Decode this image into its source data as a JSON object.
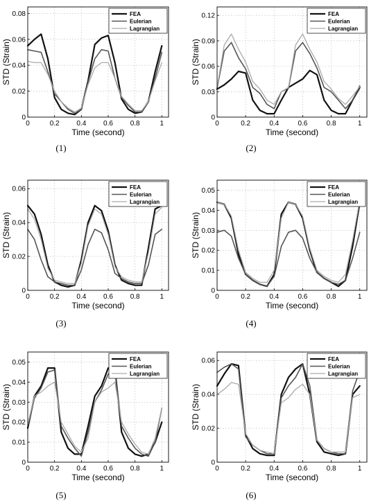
{
  "captions": [
    "(1)",
    "(2)",
    "(3)",
    "(4)",
    "(5)",
    "(6)"
  ],
  "chart_data": [
    {
      "type": "line",
      "xlabel": "Time (second)",
      "ylabel": "STD (Strain)",
      "xlim": [
        0,
        1.05
      ],
      "ylim": [
        0,
        0.085
      ],
      "xticks": [
        "0",
        "0.2",
        "0.4",
        "0.6",
        "0.8",
        "1"
      ],
      "yticks": [
        "0",
        "0.02",
        "0.04",
        "0.06",
        "0.08"
      ],
      "grid": true,
      "legend": "top-right",
      "series": [
        {
          "name": "FEA",
          "color": "#111111",
          "x": [
            0,
            0.05,
            0.1,
            0.15,
            0.2,
            0.25,
            0.3,
            0.35,
            0.4,
            0.45,
            0.5,
            0.55,
            0.6,
            0.65,
            0.7,
            0.75,
            0.8,
            0.85,
            0.9,
            0.95,
            1.0
          ],
          "values": [
            0.055,
            0.06,
            0.064,
            0.045,
            0.015,
            0.006,
            0.003,
            0.002,
            0.006,
            0.028,
            0.056,
            0.061,
            0.063,
            0.042,
            0.014,
            0.006,
            0.003,
            0.004,
            0.012,
            0.035,
            0.055
          ]
        },
        {
          "name": "Eulerian",
          "color": "#555555",
          "x": [
            0,
            0.05,
            0.1,
            0.15,
            0.2,
            0.25,
            0.3,
            0.35,
            0.4,
            0.45,
            0.5,
            0.55,
            0.6,
            0.65,
            0.7,
            0.75,
            0.8,
            0.85,
            0.9,
            0.95,
            1.0
          ],
          "values": [
            0.052,
            0.051,
            0.05,
            0.035,
            0.018,
            0.012,
            0.006,
            0.003,
            0.006,
            0.027,
            0.045,
            0.052,
            0.051,
            0.03,
            0.015,
            0.009,
            0.004,
            0.004,
            0.012,
            0.03,
            0.05
          ]
        },
        {
          "name": "Lagrangian",
          "color": "#aaaaaa",
          "x": [
            0,
            0.05,
            0.1,
            0.15,
            0.2,
            0.25,
            0.3,
            0.35,
            0.4,
            0.45,
            0.5,
            0.55,
            0.6,
            0.65,
            0.7,
            0.75,
            0.8,
            0.85,
            0.9,
            0.95,
            1.0
          ],
          "values": [
            0.043,
            0.042,
            0.042,
            0.033,
            0.02,
            0.012,
            0.007,
            0.004,
            0.007,
            0.025,
            0.038,
            0.042,
            0.042,
            0.03,
            0.016,
            0.01,
            0.005,
            0.005,
            0.012,
            0.028,
            0.042
          ]
        }
      ]
    },
    {
      "type": "line",
      "xlabel": "Time (second)",
      "ylabel": "STD (Strain)",
      "xlim": [
        0,
        1.05
      ],
      "ylim": [
        0,
        0.13
      ],
      "xticks": [
        "0",
        "0.2",
        "0.4",
        "0.6",
        "0.8",
        "1"
      ],
      "yticks": [
        "0",
        "0.03",
        "0.06",
        "0.09",
        "0.12"
      ],
      "grid": true,
      "legend": "top-right",
      "series": [
        {
          "name": "FEA",
          "color": "#111111",
          "x": [
            0,
            0.05,
            0.1,
            0.15,
            0.2,
            0.25,
            0.3,
            0.35,
            0.4,
            0.45,
            0.5,
            0.55,
            0.6,
            0.65,
            0.7,
            0.75,
            0.8,
            0.85,
            0.9,
            0.95,
            1.0
          ],
          "values": [
            0.033,
            0.038,
            0.045,
            0.054,
            0.052,
            0.02,
            0.008,
            0.004,
            0.004,
            0.02,
            0.035,
            0.04,
            0.045,
            0.055,
            0.05,
            0.02,
            0.008,
            0.004,
            0.004,
            0.02,
            0.035
          ]
        },
        {
          "name": "Eulerian",
          "color": "#555555",
          "x": [
            0,
            0.05,
            0.1,
            0.15,
            0.2,
            0.25,
            0.3,
            0.35,
            0.4,
            0.45,
            0.5,
            0.55,
            0.6,
            0.65,
            0.7,
            0.75,
            0.8,
            0.85,
            0.9,
            0.95,
            1.0
          ],
          "values": [
            0.034,
            0.078,
            0.088,
            0.07,
            0.057,
            0.035,
            0.028,
            0.015,
            0.01,
            0.03,
            0.034,
            0.078,
            0.088,
            0.075,
            0.058,
            0.035,
            0.03,
            0.02,
            0.01,
            0.02,
            0.037
          ]
        },
        {
          "name": "Lagrangian",
          "color": "#aaaaaa",
          "x": [
            0,
            0.05,
            0.1,
            0.15,
            0.2,
            0.25,
            0.3,
            0.35,
            0.4,
            0.45,
            0.5,
            0.55,
            0.6,
            0.65,
            0.7,
            0.75,
            0.8,
            0.85,
            0.9,
            0.95,
            1.0
          ],
          "values": [
            0.035,
            0.085,
            0.098,
            0.08,
            0.065,
            0.042,
            0.033,
            0.02,
            0.015,
            0.03,
            0.035,
            0.085,
            0.098,
            0.08,
            0.065,
            0.042,
            0.033,
            0.022,
            0.015,
            0.025,
            0.036
          ]
        }
      ]
    },
    {
      "type": "line",
      "xlabel": "Time (second)",
      "ylabel": "STD (Strain)",
      "xlim": [
        0,
        1.05
      ],
      "ylim": [
        0,
        0.065
      ],
      "xticks": [
        "0",
        "0.2",
        "0.4",
        "0.6",
        "0.8",
        "1"
      ],
      "yticks": [
        "0",
        "0.02",
        "0.04",
        "0.06"
      ],
      "grid": true,
      "legend": "top-right",
      "series": [
        {
          "name": "FEA",
          "color": "#111111",
          "x": [
            0,
            0.05,
            0.1,
            0.15,
            0.2,
            0.25,
            0.3,
            0.35,
            0.4,
            0.45,
            0.5,
            0.55,
            0.6,
            0.65,
            0.7,
            0.75,
            0.8,
            0.85,
            0.9,
            0.95,
            1.0
          ],
          "values": [
            0.05,
            0.045,
            0.033,
            0.015,
            0.005,
            0.003,
            0.002,
            0.003,
            0.018,
            0.04,
            0.05,
            0.047,
            0.035,
            0.015,
            0.006,
            0.004,
            0.003,
            0.003,
            0.025,
            0.048,
            0.05
          ]
        },
        {
          "name": "Eulerian",
          "color": "#555555",
          "x": [
            0,
            0.05,
            0.1,
            0.15,
            0.2,
            0.25,
            0.3,
            0.35,
            0.4,
            0.45,
            0.5,
            0.55,
            0.6,
            0.65,
            0.7,
            0.75,
            0.8,
            0.85,
            0.9,
            0.95,
            1.0
          ],
          "values": [
            0.036,
            0.03,
            0.018,
            0.008,
            0.005,
            0.004,
            0.003,
            0.003,
            0.012,
            0.027,
            0.036,
            0.034,
            0.024,
            0.01,
            0.007,
            0.005,
            0.004,
            0.004,
            0.015,
            0.033,
            0.036
          ]
        },
        {
          "name": "Lagrangian",
          "color": "#aaaaaa",
          "x": [
            0,
            0.05,
            0.1,
            0.15,
            0.2,
            0.25,
            0.3,
            0.35,
            0.4,
            0.45,
            0.5,
            0.55,
            0.6,
            0.65,
            0.7,
            0.75,
            0.8,
            0.85,
            0.9,
            0.95,
            1.0
          ],
          "values": [
            0.048,
            0.042,
            0.03,
            0.013,
            0.006,
            0.005,
            0.004,
            0.004,
            0.016,
            0.038,
            0.048,
            0.045,
            0.033,
            0.014,
            0.008,
            0.006,
            0.005,
            0.005,
            0.022,
            0.045,
            0.049
          ]
        }
      ]
    },
    {
      "type": "line",
      "xlabel": "Time (second)",
      "ylabel": "STD (Strain)",
      "xlim": [
        0,
        1.05
      ],
      "ylim": [
        0,
        0.055
      ],
      "xticks": [
        "0",
        "0.2",
        "0.4",
        "0.6",
        "0.8",
        "1"
      ],
      "yticks": [
        "0",
        "0.01",
        "0.02",
        "0.03",
        "0.04",
        "0.05"
      ],
      "grid": true,
      "legend": "top-right",
      "series": [
        {
          "name": "FEA",
          "color": "#111111",
          "x": [
            0,
            0.05,
            0.1,
            0.15,
            0.2,
            0.25,
            0.3,
            0.35,
            0.4,
            0.45,
            0.5,
            0.55,
            0.6,
            0.65,
            0.7,
            0.75,
            0.8,
            0.85,
            0.9,
            0.95,
            1.0
          ],
          "values": [
            0.044,
            0.043,
            0.036,
            0.018,
            0.008,
            0.005,
            0.003,
            0.002,
            0.008,
            0.038,
            0.044,
            0.043,
            0.036,
            0.02,
            0.009,
            0.006,
            0.004,
            0.002,
            0.005,
            0.022,
            0.044
          ]
        },
        {
          "name": "Eulerian",
          "color": "#555555",
          "x": [
            0,
            0.05,
            0.1,
            0.15,
            0.2,
            0.25,
            0.3,
            0.35,
            0.4,
            0.45,
            0.5,
            0.55,
            0.6,
            0.65,
            0.7,
            0.75,
            0.8,
            0.85,
            0.9,
            0.95,
            1.0
          ],
          "values": [
            0.029,
            0.03,
            0.027,
            0.016,
            0.008,
            0.005,
            0.003,
            0.002,
            0.007,
            0.022,
            0.029,
            0.03,
            0.026,
            0.016,
            0.009,
            0.006,
            0.004,
            0.003,
            0.005,
            0.016,
            0.029
          ]
        },
        {
          "name": "Lagrangian",
          "color": "#aaaaaa",
          "x": [
            0,
            0.05,
            0.1,
            0.15,
            0.2,
            0.25,
            0.3,
            0.35,
            0.4,
            0.45,
            0.5,
            0.55,
            0.6,
            0.65,
            0.7,
            0.75,
            0.8,
            0.85,
            0.9,
            0.95,
            1.0
          ],
          "values": [
            0.044,
            0.043,
            0.037,
            0.02,
            0.009,
            0.006,
            0.004,
            0.004,
            0.01,
            0.036,
            0.044,
            0.043,
            0.037,
            0.021,
            0.01,
            0.007,
            0.005,
            0.004,
            0.008,
            0.025,
            0.045
          ]
        }
      ]
    },
    {
      "type": "line",
      "xlabel": "Time (second)",
      "ylabel": "STD (Strain)",
      "xlim": [
        0,
        1.05
      ],
      "ylim": [
        0,
        0.055
      ],
      "xticks": [
        "0",
        "0.2",
        "0.4",
        "0.6",
        "0.8",
        "1"
      ],
      "yticks": [
        "0",
        "0.01",
        "0.02",
        "0.03",
        "0.04",
        "0.05"
      ],
      "grid": true,
      "legend": "top-right",
      "series": [
        {
          "name": "FEA",
          "color": "#111111",
          "x": [
            0,
            0.05,
            0.1,
            0.15,
            0.2,
            0.25,
            0.3,
            0.35,
            0.4,
            0.45,
            0.5,
            0.55,
            0.6,
            0.65,
            0.7,
            0.75,
            0.8,
            0.85,
            0.9,
            0.95,
            1.0
          ],
          "values": [
            0.017,
            0.033,
            0.038,
            0.047,
            0.047,
            0.015,
            0.007,
            0.004,
            0.004,
            0.018,
            0.033,
            0.038,
            0.047,
            0.047,
            0.015,
            0.007,
            0.004,
            0.003,
            0.004,
            0.01,
            0.02
          ]
        },
        {
          "name": "Eulerian",
          "color": "#555555",
          "x": [
            0,
            0.05,
            0.1,
            0.15,
            0.2,
            0.25,
            0.3,
            0.35,
            0.4,
            0.45,
            0.5,
            0.55,
            0.6,
            0.65,
            0.7,
            0.75,
            0.8,
            0.85,
            0.9,
            0.95,
            1.0
          ],
          "values": [
            0.018,
            0.032,
            0.037,
            0.045,
            0.046,
            0.018,
            0.012,
            0.007,
            0.003,
            0.015,
            0.03,
            0.036,
            0.044,
            0.046,
            0.018,
            0.012,
            0.007,
            0.004,
            0.003,
            0.01,
            0.027
          ]
        },
        {
          "name": "Lagrangian",
          "color": "#aaaaaa",
          "x": [
            0,
            0.05,
            0.1,
            0.15,
            0.2,
            0.25,
            0.3,
            0.35,
            0.4,
            0.45,
            0.5,
            0.55,
            0.6,
            0.65,
            0.7,
            0.75,
            0.8,
            0.85,
            0.9,
            0.95,
            1.0
          ],
          "values": [
            0.019,
            0.033,
            0.035,
            0.038,
            0.04,
            0.02,
            0.014,
            0.008,
            0.005,
            0.012,
            0.03,
            0.035,
            0.037,
            0.04,
            0.02,
            0.014,
            0.009,
            0.005,
            0.004,
            0.012,
            0.027
          ]
        }
      ]
    },
    {
      "type": "line",
      "xlabel": "Time (second)",
      "ylabel": "STD (Strain)",
      "xlim": [
        0,
        1.05
      ],
      "ylim": [
        0,
        0.065
      ],
      "xticks": [
        "0",
        "0.2",
        "0.4",
        "0.6",
        "0.8",
        "1"
      ],
      "yticks": [
        "0",
        "0.02",
        "0.04",
        "0.06"
      ],
      "grid": true,
      "legend": "top-right",
      "series": [
        {
          "name": "FEA",
          "color": "#111111",
          "x": [
            0,
            0.05,
            0.1,
            0.15,
            0.2,
            0.25,
            0.3,
            0.35,
            0.4,
            0.45,
            0.5,
            0.55,
            0.6,
            0.65,
            0.7,
            0.75,
            0.8,
            0.85,
            0.9,
            0.95,
            1.0
          ],
          "values": [
            0.045,
            0.052,
            0.058,
            0.057,
            0.016,
            0.008,
            0.005,
            0.004,
            0.004,
            0.04,
            0.05,
            0.055,
            0.058,
            0.04,
            0.012,
            0.006,
            0.005,
            0.004,
            0.005,
            0.04,
            0.045
          ]
        },
        {
          "name": "Eulerian",
          "color": "#555555",
          "x": [
            0,
            0.05,
            0.1,
            0.15,
            0.2,
            0.25,
            0.3,
            0.35,
            0.4,
            0.45,
            0.5,
            0.55,
            0.6,
            0.65,
            0.7,
            0.75,
            0.8,
            0.85,
            0.9,
            0.95,
            1.0
          ],
          "values": [
            0.053,
            0.056,
            0.058,
            0.055,
            0.015,
            0.01,
            0.007,
            0.005,
            0.005,
            0.038,
            0.045,
            0.05,
            0.058,
            0.045,
            0.013,
            0.008,
            0.006,
            0.005,
            0.005,
            0.042,
            0.054
          ]
        },
        {
          "name": "Lagrangian",
          "color": "#aaaaaa",
          "x": [
            0,
            0.05,
            0.1,
            0.15,
            0.2,
            0.25,
            0.3,
            0.35,
            0.4,
            0.45,
            0.5,
            0.55,
            0.6,
            0.65,
            0.7,
            0.75,
            0.8,
            0.85,
            0.9,
            0.95,
            1.0
          ],
          "values": [
            0.04,
            0.043,
            0.047,
            0.046,
            0.017,
            0.01,
            0.007,
            0.006,
            0.005,
            0.035,
            0.038,
            0.043,
            0.046,
            0.04,
            0.013,
            0.008,
            0.006,
            0.006,
            0.006,
            0.038,
            0.04
          ]
        }
      ]
    }
  ]
}
